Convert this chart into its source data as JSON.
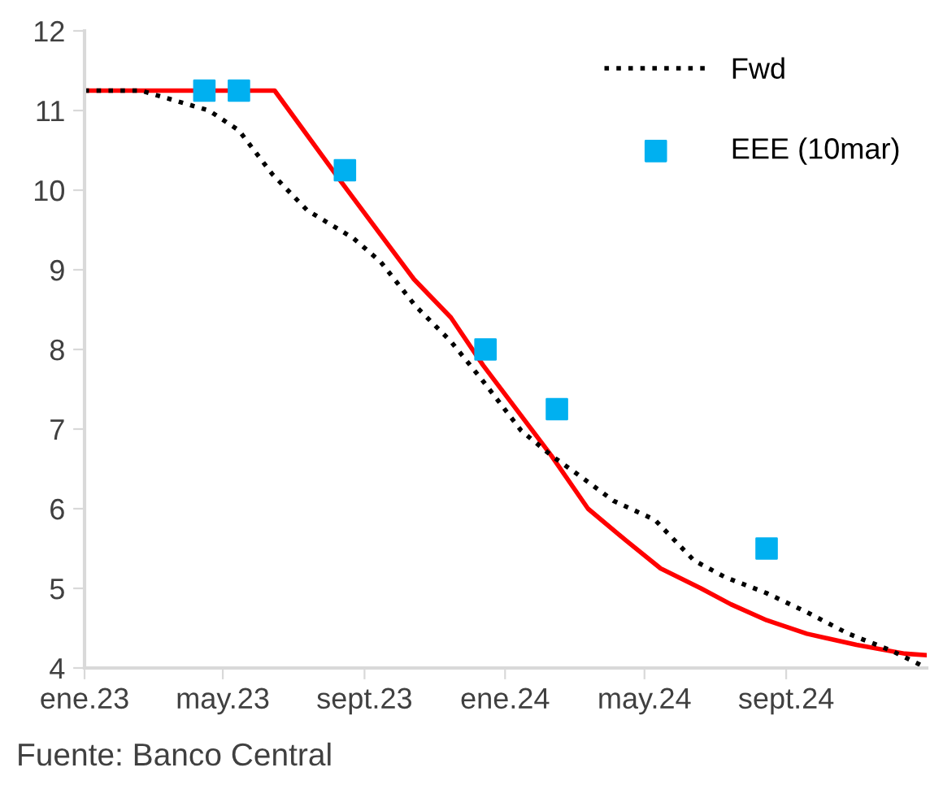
{
  "chart_data": {
    "type": "line",
    "xlim": [
      "2023-01-01",
      "2025-01-01"
    ],
    "xticks": [
      {
        "value": "2023-01-01",
        "label": "ene.23"
      },
      {
        "value": "2023-05-01",
        "label": "may.23"
      },
      {
        "value": "2023-09-01",
        "label": "sept.23"
      },
      {
        "value": "2024-01-01",
        "label": "ene.24"
      },
      {
        "value": "2024-05-01",
        "label": "may.24"
      },
      {
        "value": "2024-09-01",
        "label": "sept.24"
      }
    ],
    "ylim": [
      4,
      12
    ],
    "yticks": [
      4,
      5,
      6,
      7,
      8,
      9,
      10,
      11,
      12
    ],
    "grid": false,
    "legend": "top right",
    "series": [
      {
        "color": "#ff0000",
        "line_style": "solid",
        "x": [
          "2023-01-01",
          "2023-06-15",
          "2023-08-13",
          "2023-10-14",
          "2023-11-15",
          "2023-12-13",
          "2024-02-10",
          "2024-03-13",
          "2024-04-15",
          "2024-05-15",
          "2024-06-19",
          "2024-07-15",
          "2024-08-15",
          "2024-09-19",
          "2024-11-01",
          "2024-12-13",
          "2025-01-01"
        ],
        "values": [
          11.25,
          11.25,
          10.08,
          8.88,
          8.4,
          7.8,
          6.67,
          6.0,
          5.6,
          5.25,
          5.0,
          4.8,
          4.6,
          4.43,
          4.29,
          4.18,
          4.16
        ]
      },
      {
        "name": "Fwd",
        "color": "#000000",
        "line_style": "dotted",
        "x": [
          "2023-01-01",
          "2023-02-19",
          "2023-04-19",
          "2023-05-15",
          "2023-06-13",
          "2023-07-13",
          "2023-08-22",
          "2023-09-15",
          "2023-10-15",
          "2023-11-15",
          "2023-12-13",
          "2024-01-15",
          "2024-02-10",
          "2024-03-07",
          "2024-04-04",
          "2024-05-10",
          "2024-06-13",
          "2024-07-10",
          "2024-08-15",
          "2024-09-19",
          "2024-10-25",
          "2024-12-01",
          "2025-01-01"
        ],
        "values": [
          11.25,
          11.25,
          11.0,
          10.75,
          10.2,
          9.75,
          9.4,
          9.1,
          8.55,
          8.1,
          7.6,
          6.98,
          6.67,
          6.4,
          6.1,
          5.86,
          5.35,
          5.14,
          4.94,
          4.7,
          4.43,
          4.22,
          4.0
        ]
      },
      {
        "name": "EEE (10mar)",
        "type": "scatter",
        "marker": "square",
        "color": "#00b0f0",
        "x": [
          "2023-04-15",
          "2023-05-15",
          "2023-08-15",
          "2023-12-15",
          "2024-02-15",
          "2024-08-15"
        ],
        "values": [
          11.25,
          11.25,
          10.25,
          8.0,
          7.25,
          5.5
        ]
      }
    ],
    "annotations": [
      "Fuente: Banco Central"
    ]
  }
}
